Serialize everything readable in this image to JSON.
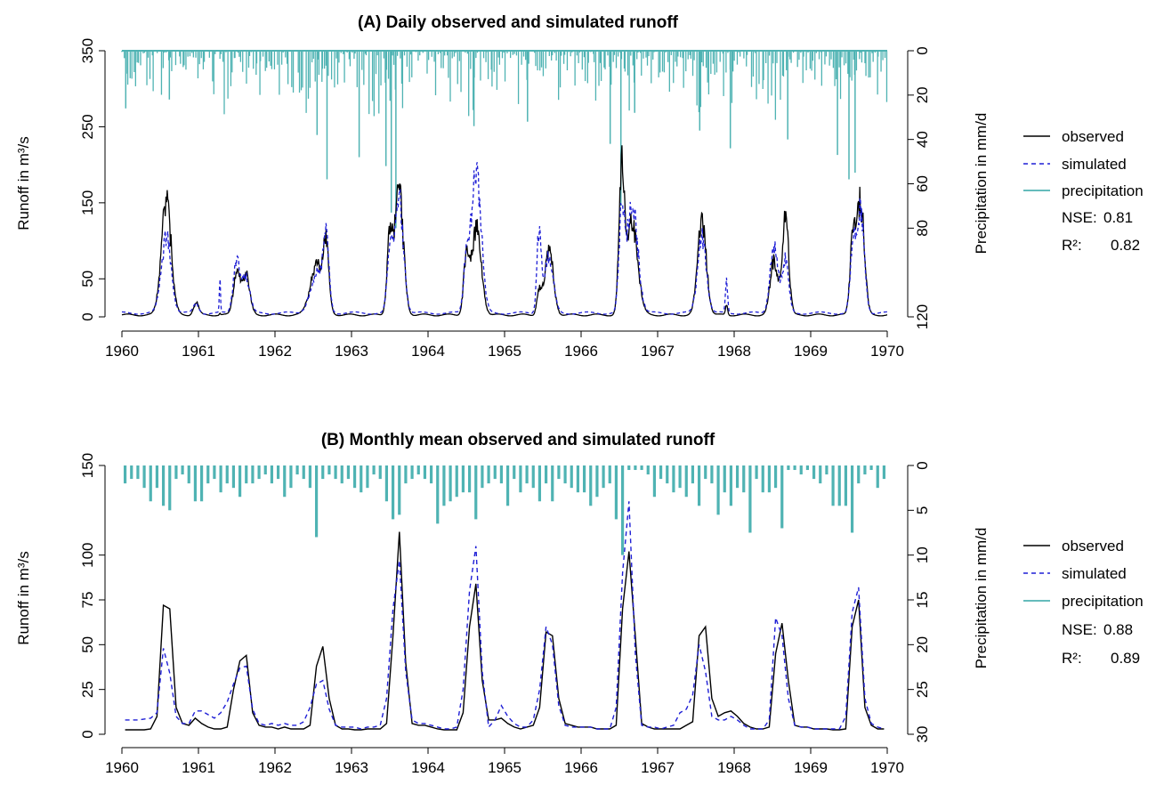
{
  "colors": {
    "observed": "#000000",
    "simulated": "#1f1fd6",
    "precipitation": "#4fb3b3"
  },
  "chart_data": [
    {
      "id": "daily",
      "type": "line",
      "title": "(A) Daily observed and simulated runoff",
      "ylabel": "Runoff in m³/s",
      "y2label": "Precipitation in mm/d",
      "ylim": [
        0,
        350
      ],
      "yticks": [
        "0",
        "50",
        "150",
        "250",
        "350"
      ],
      "y2lim": [
        0,
        120
      ],
      "y2ticks": [
        "0",
        "20",
        "40",
        "60",
        "80",
        "120"
      ],
      "y2reversed": true,
      "xlim": [
        1960,
        1970
      ],
      "xticks": [
        "1960",
        "1961",
        "1962",
        "1963",
        "1964",
        "1965",
        "1966",
        "1967",
        "1968",
        "1969",
        "1970"
      ],
      "legend_position": "right",
      "legend": [
        "observed",
        "simulated",
        "precipitation"
      ],
      "stats": [
        {
          "label": "NSE:",
          "value": "0.81"
        },
        {
          "label": "R²:",
          "value": "0.82"
        }
      ],
      "peaks": [
        {
          "t": 1960.58,
          "obs": 170,
          "sim": 115,
          "w": 0.09
        },
        {
          "t": 1960.97,
          "obs": 18,
          "sim": 14,
          "w": 0.05
        },
        {
          "t": 1961.28,
          "obs": 3,
          "sim": 55,
          "w": 0.01
        },
        {
          "t": 1961.5,
          "obs": 65,
          "sim": 78,
          "w": 0.06
        },
        {
          "t": 1961.62,
          "obs": 60,
          "sim": 55,
          "w": 0.07
        },
        {
          "t": 1962.55,
          "obs": 75,
          "sim": 60,
          "w": 0.12
        },
        {
          "t": 1962.67,
          "obs": 85,
          "sim": 105,
          "w": 0.05
        },
        {
          "t": 1963.5,
          "obs": 110,
          "sim": 90,
          "w": 0.05
        },
        {
          "t": 1963.62,
          "obs": 182,
          "sim": 175,
          "w": 0.08
        },
        {
          "t": 1964.5,
          "obs": 80,
          "sim": 75,
          "w": 0.05
        },
        {
          "t": 1964.63,
          "obs": 128,
          "sim": 218,
          "w": 0.09
        },
        {
          "t": 1965.45,
          "obs": 35,
          "sim": 120,
          "w": 0.04
        },
        {
          "t": 1965.58,
          "obs": 98,
          "sim": 85,
          "w": 0.08
        },
        {
          "t": 1966.53,
          "obs": 208,
          "sim": 140,
          "w": 0.05
        },
        {
          "t": 1966.67,
          "obs": 140,
          "sim": 165,
          "w": 0.1
        },
        {
          "t": 1967.58,
          "obs": 143,
          "sim": 115,
          "w": 0.08
        },
        {
          "t": 1967.9,
          "obs": 15,
          "sim": 50,
          "w": 0.02
        },
        {
          "t": 1968.52,
          "obs": 80,
          "sim": 105,
          "w": 0.07
        },
        {
          "t": 1968.67,
          "obs": 145,
          "sim": 80,
          "w": 0.06
        },
        {
          "t": 1969.55,
          "obs": 110,
          "sim": 90,
          "w": 0.05
        },
        {
          "t": 1969.65,
          "obs": 170,
          "sim": 150,
          "w": 0.07
        }
      ],
      "precip_spikes": [
        {
          "t": 1960.05,
          "v": 26
        },
        {
          "t": 1960.62,
          "v": 22
        },
        {
          "t": 1962.55,
          "v": 38
        },
        {
          "t": 1962.68,
          "v": 58
        },
        {
          "t": 1963.1,
          "v": 48
        },
        {
          "t": 1963.45,
          "v": 52
        },
        {
          "t": 1963.52,
          "v": 73
        },
        {
          "t": 1963.58,
          "v": 80
        },
        {
          "t": 1964.6,
          "v": 34
        },
        {
          "t": 1965.3,
          "v": 32
        },
        {
          "t": 1966.38,
          "v": 42
        },
        {
          "t": 1966.52,
          "v": 70
        },
        {
          "t": 1966.7,
          "v": 28
        },
        {
          "t": 1967.55,
          "v": 36
        },
        {
          "t": 1967.95,
          "v": 44
        },
        {
          "t": 1968.7,
          "v": 40
        },
        {
          "t": 1969.35,
          "v": 47
        },
        {
          "t": 1969.5,
          "v": 58
        },
        {
          "t": 1969.58,
          "v": 55
        }
      ]
    },
    {
      "id": "monthly",
      "type": "line",
      "title": "(B) Monthly mean observed and simulated runoff",
      "ylabel": "Runoff in m³/s",
      "y2label": "Precipitation in mm/d",
      "ylim": [
        0,
        150
      ],
      "yticks": [
        "0",
        "25",
        "50",
        "75",
        "100",
        "150"
      ],
      "y2lim": [
        0,
        30
      ],
      "y2ticks": [
        "0",
        "5",
        "10",
        "15",
        "20",
        "25",
        "30"
      ],
      "y2reversed": true,
      "xlim": [
        1960,
        1970
      ],
      "xticks": [
        "1960",
        "1961",
        "1962",
        "1963",
        "1964",
        "1965",
        "1966",
        "1967",
        "1968",
        "1969",
        "1970"
      ],
      "legend_position": "right",
      "legend": [
        "observed",
        "simulated",
        "precipitation"
      ],
      "stats": [
        {
          "label": "NSE:",
          "value": "0.88"
        },
        {
          "label": "R²:",
          "value": "0.89"
        }
      ],
      "observed": [
        2.5,
        2.5,
        2.5,
        2.5,
        3,
        10,
        72,
        70,
        15,
        6,
        5,
        9,
        6,
        4,
        3,
        3,
        4,
        25,
        41,
        44,
        12,
        5,
        4,
        4,
        3,
        4,
        3,
        3,
        3,
        5,
        38,
        49,
        20,
        5,
        3,
        3,
        2.5,
        2.5,
        3,
        3,
        3,
        6,
        55,
        113,
        40,
        6,
        5,
        5,
        4,
        3,
        2.5,
        2.5,
        2.5,
        12,
        60,
        84,
        30,
        8,
        8,
        9,
        6,
        4,
        3,
        4,
        5,
        15,
        57,
        55,
        20,
        6,
        5,
        4,
        4,
        4,
        3,
        3,
        3,
        5,
        70,
        102,
        55,
        6,
        4,
        3,
        3,
        3,
        3,
        3,
        5,
        7,
        55,
        60,
        20,
        10,
        12,
        13,
        10,
        6,
        4,
        3,
        3,
        4,
        45,
        62,
        30,
        5,
        4,
        4,
        3,
        3,
        3,
        2.5,
        2.5,
        3,
        60,
        75,
        15,
        5,
        3,
        3
      ],
      "simulated": [
        8,
        8,
        8,
        8.5,
        9,
        12,
        48,
        34,
        10,
        6,
        6,
        13,
        13,
        11,
        9,
        12,
        18,
        28,
        37,
        38,
        14,
        6,
        5,
        6,
        5,
        6,
        5,
        5,
        7,
        15,
        28,
        30,
        14,
        5,
        4,
        4,
        4,
        3,
        4,
        4,
        5,
        20,
        70,
        97,
        35,
        8,
        6,
        6,
        5,
        4,
        3,
        3,
        4,
        25,
        80,
        105,
        35,
        4,
        8,
        16,
        10,
        6,
        4,
        4,
        8,
        25,
        60,
        50,
        16,
        5,
        4,
        4,
        4,
        4,
        3,
        3,
        3,
        15,
        90,
        130,
        45,
        5,
        4,
        4,
        3,
        4,
        5,
        12,
        14,
        22,
        50,
        35,
        10,
        8,
        8,
        10,
        8,
        5,
        3,
        3,
        3,
        8,
        65,
        55,
        20,
        5,
        4,
        4,
        3,
        3,
        3,
        3,
        3,
        10,
        68,
        82,
        20,
        6,
        4,
        3
      ],
      "precipitation": [
        2,
        1.5,
        1.5,
        2.5,
        4,
        2.5,
        4.5,
        5,
        1.5,
        1,
        2,
        4,
        4,
        2,
        1.5,
        3,
        2,
        2.5,
        3.5,
        2,
        2,
        1.5,
        1,
        2,
        1.5,
        3.5,
        2.5,
        1,
        1.5,
        2.5,
        8,
        1.5,
        1,
        1.5,
        2,
        1.5,
        2.5,
        3,
        2.5,
        1,
        1.5,
        4,
        6,
        5.5,
        2,
        1.5,
        1,
        1.5,
        2,
        6.5,
        4.5,
        4,
        3.5,
        3,
        3,
        6,
        2.5,
        2,
        1.5,
        2,
        4.5,
        1.5,
        3,
        2,
        2.5,
        4,
        2,
        4,
        1.5,
        2,
        2.5,
        3,
        3,
        4.5,
        3.5,
        2.5,
        2,
        6,
        10,
        0.5,
        0.5,
        0.5,
        1,
        3.5,
        1.5,
        2,
        3,
        2.5,
        3.5,
        2,
        4.5,
        1.5,
        2,
        5.5,
        3,
        4.5,
        2.5,
        3,
        7.5,
        1.5,
        3,
        3,
        2.5,
        7,
        0.5,
        0.5,
        1,
        0.5,
        1.5,
        2,
        1,
        4.5,
        4.5,
        4.5,
        7.5,
        2,
        1,
        0.5,
        2.5,
        1.5
      ]
    }
  ]
}
